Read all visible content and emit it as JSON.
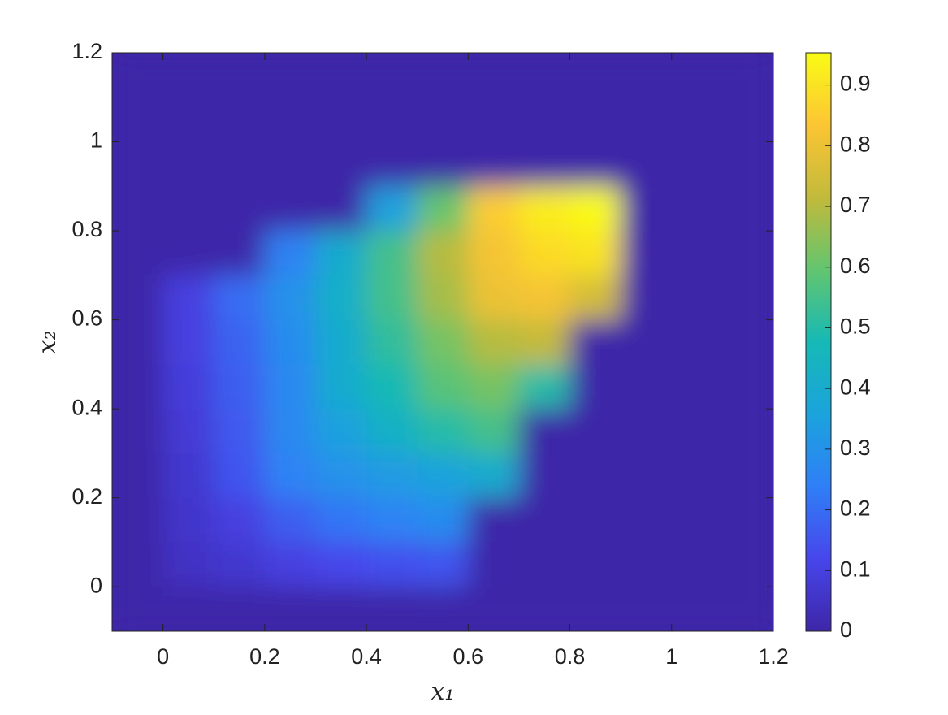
{
  "chart_data": {
    "type": "heatmap",
    "xlabel": "x₁",
    "ylabel": "x₂",
    "x": [
      -0.05,
      0.05,
      0.15,
      0.25,
      0.35,
      0.45,
      0.55,
      0.65,
      0.75,
      0.85,
      0.95,
      1.05,
      1.15
    ],
    "y": [
      1.15,
      1.05,
      0.95,
      0.85,
      0.75,
      0.65,
      0.55,
      0.45,
      0.35,
      0.25,
      0.15,
      0.05,
      -0.05
    ],
    "z": [
      [
        0,
        0,
        0,
        0,
        0,
        0,
        0,
        0,
        0,
        0,
        0,
        0,
        0
      ],
      [
        0,
        0,
        0,
        0,
        0,
        0,
        0,
        0,
        0,
        0,
        0,
        0,
        0
      ],
      [
        0,
        0,
        0,
        0,
        0,
        0,
        0,
        0,
        0,
        0,
        0,
        0,
        0
      ],
      [
        0,
        0,
        0,
        0,
        0,
        0.35,
        0.6,
        0.85,
        0.92,
        0.95,
        0,
        0,
        0
      ],
      [
        0,
        0,
        0,
        0.25,
        0.4,
        0.55,
        0.7,
        0.82,
        0.88,
        0.9,
        0,
        0,
        0
      ],
      [
        0,
        0.1,
        0.2,
        0.3,
        0.42,
        0.55,
        0.68,
        0.8,
        0.82,
        0.75,
        0,
        0,
        0
      ],
      [
        0,
        0.1,
        0.18,
        0.28,
        0.4,
        0.52,
        0.62,
        0.7,
        0.72,
        0,
        0,
        0,
        0
      ],
      [
        0,
        0.09,
        0.17,
        0.27,
        0.4,
        0.48,
        0.58,
        0.62,
        0.5,
        0,
        0,
        0,
        0
      ],
      [
        0,
        0.08,
        0.16,
        0.27,
        0.35,
        0.43,
        0.5,
        0.55,
        0,
        0,
        0,
        0,
        0
      ],
      [
        0,
        0.07,
        0.15,
        0.25,
        0.3,
        0.33,
        0.36,
        0.4,
        0,
        0,
        0,
        0,
        0
      ],
      [
        0,
        0.06,
        0.1,
        0.17,
        0.22,
        0.25,
        0.28,
        0,
        0,
        0,
        0,
        0,
        0
      ],
      [
        0,
        0.05,
        0.07,
        0.1,
        0.12,
        0.14,
        0.15,
        0,
        0,
        0,
        0,
        0,
        0
      ],
      [
        0,
        0,
        0,
        0,
        0,
        0,
        0,
        0,
        0,
        0,
        0,
        0,
        0
      ]
    ],
    "xlim": [
      -0.1,
      1.2
    ],
    "xticks": [
      0,
      0.2,
      0.4,
      0.6,
      0.8,
      1,
      1.2
    ],
    "ylim": [
      -0.1,
      1.2
    ],
    "yticks": [
      0,
      0.2,
      0.4,
      0.6,
      0.8,
      1,
      1.2
    ],
    "clim": [
      0,
      0.953
    ],
    "cticks": [
      0,
      0.1,
      0.2,
      0.3,
      0.4,
      0.5,
      0.6,
      0.7,
      0.8,
      0.9
    ],
    "colormap": [
      "#3e26a8",
      "#4746eb",
      "#2f7ff7",
      "#1ba3dc",
      "#16b9b6",
      "#62c56f",
      "#c2ba3b",
      "#fcc534",
      "#f9fb15"
    ]
  }
}
